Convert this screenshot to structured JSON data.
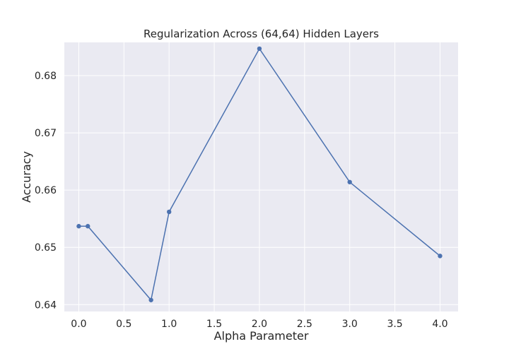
{
  "chart_data": {
    "type": "line",
    "title": "Regularization Across (64,64) Hidden Layers",
    "xlabel": "Alpha Parameter",
    "ylabel": "Accuracy",
    "x_ticks": [
      "0.0",
      "0.5",
      "1.0",
      "1.5",
      "2.0",
      "2.5",
      "3.0",
      "3.5",
      "4.0"
    ],
    "y_ticks": [
      "0.64",
      "0.65",
      "0.66",
      "0.67",
      "0.68"
    ],
    "xlim": [
      -0.16,
      4.2
    ],
    "ylim": [
      0.6388,
      0.6858
    ],
    "grid": true,
    "style": "seaborn-darkgrid",
    "colors": {
      "line": "#4c72b0",
      "plot_background": "#eaeaf2",
      "grid": "#ffffff"
    },
    "series": [
      {
        "x": [
          0.0,
          0.1,
          0.8,
          1.0,
          2.0,
          3.0,
          4.0
        ],
        "y": [
          0.6537,
          0.6537,
          0.6408,
          0.6562,
          0.6847,
          0.6614,
          0.6485
        ]
      }
    ]
  }
}
